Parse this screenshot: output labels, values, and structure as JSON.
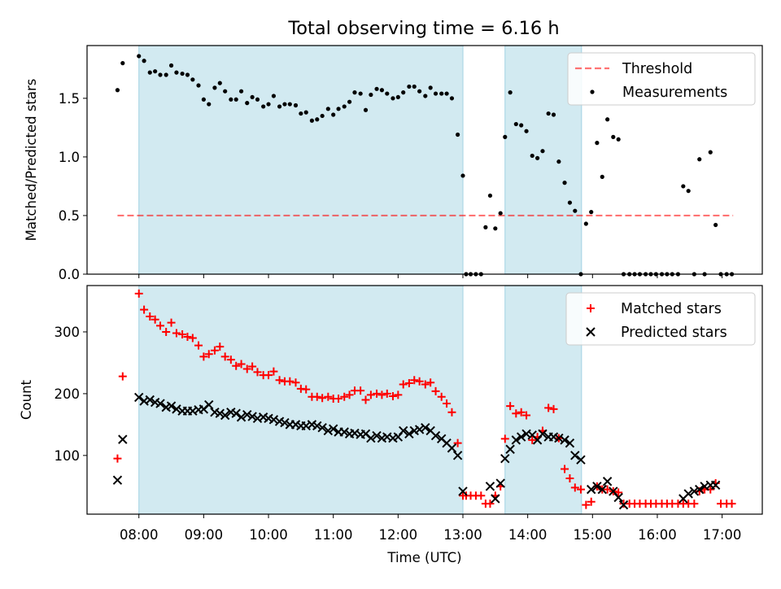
{
  "title": "Total observing time = 6.16 h",
  "colors": {
    "shade": "#add8e6",
    "threshold": "#ff0000",
    "matched": "#ff0000",
    "predicted": "#000000",
    "measurement": "#000000"
  },
  "chart_data": [
    {
      "type": "scatter",
      "panel": "top",
      "ylabel": "Matched/Predicted stars",
      "xlim_hours": [
        7.2,
        17.62
      ],
      "ylim": [
        0,
        1.95
      ],
      "yticks": [
        0.0,
        0.5,
        1.0,
        1.5
      ],
      "ytick_labels": [
        "0.0",
        "0.5",
        "1.0",
        "1.5"
      ],
      "legend_position": "top-right",
      "shaded_intervals_hours": [
        [
          8.0,
          13.0
        ],
        [
          13.65,
          14.83
        ]
      ],
      "threshold": {
        "name": "Threshold",
        "y": 0.5,
        "x_range_hours": [
          7.67,
          17.17
        ],
        "style": "dashed"
      },
      "series": [
        {
          "name": "Measurements",
          "x_hours": [
            7.67,
            7.75,
            8.0,
            8.08,
            8.17,
            8.25,
            8.33,
            8.42,
            8.5,
            8.58,
            8.67,
            8.75,
            8.83,
            8.92,
            9.0,
            9.08,
            9.17,
            9.25,
            9.33,
            9.42,
            9.5,
            9.58,
            9.67,
            9.75,
            9.83,
            9.92,
            10.0,
            10.08,
            10.17,
            10.25,
            10.33,
            10.42,
            10.5,
            10.58,
            10.67,
            10.75,
            10.83,
            10.92,
            11.0,
            11.08,
            11.17,
            11.25,
            11.33,
            11.42,
            11.5,
            11.58,
            11.67,
            11.75,
            11.83,
            11.92,
            12.0,
            12.08,
            12.17,
            12.25,
            12.33,
            12.42,
            12.5,
            12.58,
            12.67,
            12.75,
            12.83,
            12.92,
            13.0,
            13.05,
            13.12,
            13.2,
            13.28,
            13.35,
            13.42,
            13.5,
            13.58,
            13.65,
            13.73,
            13.82,
            13.9,
            13.98,
            14.07,
            14.15,
            14.23,
            14.32,
            14.4,
            14.48,
            14.57,
            14.65,
            14.73,
            14.82,
            14.9,
            14.98,
            15.07,
            15.15,
            15.23,
            15.32,
            15.4,
            15.48,
            15.57,
            15.65,
            15.73,
            15.82,
            15.9,
            15.98,
            16.07,
            16.15,
            16.23,
            16.32,
            16.4,
            16.48,
            16.57,
            16.65,
            16.73,
            16.82,
            16.9,
            16.98,
            17.07,
            17.15
          ],
          "y": [
            1.57,
            1.8,
            1.86,
            1.82,
            1.72,
            1.73,
            1.7,
            1.7,
            1.78,
            1.72,
            1.71,
            1.7,
            1.66,
            1.61,
            1.49,
            1.45,
            1.59,
            1.63,
            1.56,
            1.49,
            1.49,
            1.56,
            1.46,
            1.51,
            1.49,
            1.43,
            1.45,
            1.52,
            1.43,
            1.45,
            1.45,
            1.44,
            1.37,
            1.38,
            1.31,
            1.32,
            1.35,
            1.41,
            1.36,
            1.41,
            1.43,
            1.47,
            1.55,
            1.54,
            1.4,
            1.53,
            1.58,
            1.57,
            1.54,
            1.5,
            1.51,
            1.55,
            1.6,
            1.6,
            1.56,
            1.52,
            1.59,
            1.54,
            1.54,
            1.54,
            1.5,
            1.19,
            0.84,
            0.0,
            0.0,
            0.0,
            0.0,
            0.4,
            0.67,
            0.39,
            0.52,
            1.17,
            1.55,
            1.28,
            1.27,
            1.22,
            1.01,
            0.99,
            1.05,
            1.37,
            1.36,
            0.96,
            0.78,
            0.61,
            0.54,
            0.0,
            0.43,
            0.53,
            1.12,
            0.83,
            1.32,
            1.17,
            1.15,
            0.0,
            0.0,
            0.0,
            0.0,
            0.0,
            0.0,
            0.0,
            0.0,
            0.0,
            0.0,
            0.0,
            0.75,
            0.71,
            0.0,
            0.98,
            0.0,
            1.04,
            0.42,
            0.0,
            0.0,
            0.0
          ]
        }
      ]
    },
    {
      "type": "scatter",
      "panel": "bottom",
      "title": "Total observing time = 6.16 h",
      "xlabel": "Time (UTC)",
      "ylabel": "Count",
      "xlim_hours": [
        7.2,
        17.62
      ],
      "ylim": [
        5,
        375
      ],
      "yticks": [
        100,
        200,
        300
      ],
      "ytick_labels": [
        "100",
        "200",
        "300"
      ],
      "xticks_hours": [
        8,
        9,
        10,
        11,
        12,
        13,
        14,
        15,
        16,
        17
      ],
      "xtick_labels": [
        "08:00",
        "09:00",
        "10:00",
        "11:00",
        "12:00",
        "13:00",
        "14:00",
        "15:00",
        "16:00",
        "17:00"
      ],
      "legend_position": "top-right",
      "shaded_intervals_hours": [
        [
          8.0,
          13.0
        ],
        [
          13.65,
          14.83
        ]
      ],
      "series": [
        {
          "name": "Matched stars",
          "marker": "plus",
          "x_hours": [
            7.67,
            7.75,
            8.0,
            8.08,
            8.17,
            8.25,
            8.33,
            8.42,
            8.5,
            8.58,
            8.67,
            8.75,
            8.83,
            8.92,
            9.0,
            9.08,
            9.17,
            9.25,
            9.33,
            9.42,
            9.5,
            9.58,
            9.67,
            9.75,
            9.83,
            9.92,
            10.0,
            10.08,
            10.17,
            10.25,
            10.33,
            10.42,
            10.5,
            10.58,
            10.67,
            10.75,
            10.83,
            10.92,
            11.0,
            11.08,
            11.17,
            11.25,
            11.33,
            11.42,
            11.5,
            11.58,
            11.67,
            11.75,
            11.83,
            11.92,
            12.0,
            12.08,
            12.17,
            12.25,
            12.33,
            12.42,
            12.5,
            12.58,
            12.67,
            12.75,
            12.83,
            12.92,
            13.0,
            13.05,
            13.12,
            13.2,
            13.28,
            13.35,
            13.42,
            13.5,
            13.58,
            13.65,
            13.73,
            13.82,
            13.9,
            13.98,
            14.07,
            14.15,
            14.23,
            14.32,
            14.4,
            14.48,
            14.57,
            14.65,
            14.73,
            14.82,
            14.9,
            14.98,
            15.07,
            15.15,
            15.23,
            15.32,
            15.4,
            15.48,
            15.57,
            15.65,
            15.73,
            15.82,
            15.9,
            15.98,
            16.07,
            16.15,
            16.23,
            16.32,
            16.4,
            16.48,
            16.57,
            16.65,
            16.73,
            16.82,
            16.9,
            16.98,
            17.07,
            17.15
          ],
          "y": [
            95,
            228,
            362,
            336,
            325,
            320,
            310,
            300,
            315,
            298,
            296,
            292,
            290,
            278,
            260,
            264,
            270,
            276,
            260,
            255,
            245,
            248,
            240,
            244,
            235,
            230,
            230,
            236,
            222,
            220,
            220,
            218,
            208,
            207,
            195,
            195,
            193,
            195,
            192,
            192,
            195,
            198,
            205,
            205,
            190,
            198,
            200,
            198,
            200,
            196,
            198,
            215,
            217,
            222,
            220,
            215,
            218,
            204,
            195,
            184,
            170,
            120,
            35,
            35,
            35,
            35,
            35,
            22,
            22,
            35,
            50,
            127,
            180,
            168,
            170,
            165,
            125,
            130,
            140,
            177,
            175,
            128,
            78,
            63,
            48,
            45,
            20,
            25,
            50,
            45,
            45,
            42,
            40,
            22,
            22,
            22,
            22,
            22,
            22,
            22,
            22,
            22,
            22,
            22,
            22,
            22,
            22,
            42,
            45,
            45,
            55,
            22,
            22,
            22
          ]
        },
        {
          "name": "Predicted stars",
          "marker": "x",
          "x_hours": [
            7.67,
            7.75,
            8.0,
            8.08,
            8.17,
            8.25,
            8.33,
            8.42,
            8.5,
            8.58,
            8.67,
            8.75,
            8.83,
            8.92,
            9.0,
            9.08,
            9.17,
            9.25,
            9.33,
            9.42,
            9.5,
            9.58,
            9.67,
            9.75,
            9.83,
            9.92,
            10.0,
            10.08,
            10.17,
            10.25,
            10.33,
            10.42,
            10.5,
            10.58,
            10.67,
            10.75,
            10.83,
            10.92,
            11.0,
            11.08,
            11.17,
            11.25,
            11.33,
            11.42,
            11.5,
            11.58,
            11.67,
            11.75,
            11.83,
            11.92,
            12.0,
            12.08,
            12.17,
            12.25,
            12.33,
            12.42,
            12.5,
            12.58,
            12.67,
            12.75,
            12.83,
            12.92,
            13.0,
            13.42,
            13.5,
            13.58,
            13.65,
            13.73,
            13.82,
            13.9,
            13.98,
            14.07,
            14.15,
            14.23,
            14.32,
            14.4,
            14.48,
            14.57,
            14.65,
            14.73,
            14.82,
            14.98,
            15.07,
            15.15,
            15.23,
            15.32,
            15.4,
            15.48,
            16.4,
            16.48,
            16.57,
            16.65,
            16.73,
            16.82,
            16.9
          ],
          "y": [
            60,
            126,
            194,
            188,
            190,
            186,
            184,
            178,
            180,
            175,
            172,
            172,
            172,
            174,
            175,
            182,
            170,
            168,
            165,
            170,
            168,
            162,
            166,
            163,
            160,
            162,
            160,
            158,
            155,
            153,
            150,
            150,
            148,
            148,
            150,
            148,
            145,
            140,
            143,
            138,
            138,
            135,
            136,
            134,
            135,
            128,
            132,
            128,
            130,
            128,
            130,
            140,
            135,
            140,
            142,
            145,
            140,
            132,
            127,
            120,
            112,
            100,
            42,
            50,
            30,
            55,
            95,
            110,
            125,
            130,
            135,
            133,
            125,
            135,
            130,
            130,
            128,
            125,
            120,
            100,
            93,
            45,
            50,
            45,
            58,
            42,
            32,
            20,
            30,
            38,
            42,
            45,
            50,
            52,
            52
          ]
        }
      ]
    }
  ],
  "legend_top": {
    "items": [
      "Threshold",
      "Measurements"
    ]
  },
  "legend_bottom": {
    "items": [
      "Matched stars",
      "Predicted stars"
    ]
  }
}
